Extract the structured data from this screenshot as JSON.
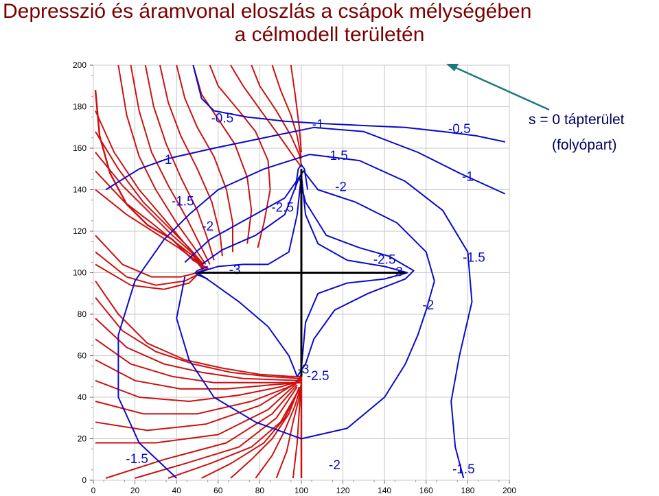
{
  "title": {
    "line1": "Depresszió és áramvonal eloszlás a csápok mélységében",
    "line2": "a célmodell területén"
  },
  "annotation": {
    "line1": "s = 0 tápterület",
    "line2": "(folyópart)"
  },
  "colors": {
    "title": "#7a0000",
    "streamlines": "#cc1111",
    "contours": "#0a0acc",
    "well": "#000000",
    "arrow": "#1a7a7a"
  },
  "chart_data": {
    "type": "contour",
    "title": "Depresszió és áramvonal eloszlás a csápok mélységében a célmodell területén",
    "xlim": [
      0,
      200
    ],
    "ylim": [
      0,
      200
    ],
    "x_ticks": [
      "0",
      "20",
      "40",
      "60",
      "80",
      "100",
      "120",
      "140",
      "160",
      "180",
      "200"
    ],
    "y_ticks": [
      "0",
      "20",
      "40",
      "60",
      "80",
      "100",
      "120",
      "140",
      "160",
      "180",
      "200"
    ],
    "grid": true,
    "well": {
      "center": [
        100,
        100
      ],
      "laterals": [
        {
          "from": [
            100,
            100
          ],
          "to": [
            50,
            100
          ]
        },
        {
          "from": [
            100,
            100
          ],
          "to": [
            150,
            100
          ]
        },
        {
          "from": [
            100,
            100
          ],
          "to": [
            100,
            150
          ]
        },
        {
          "from": [
            100,
            100
          ],
          "to": [
            100,
            50
          ]
        }
      ]
    },
    "contour_labels": [
      {
        "text": "-0.5",
        "x": 62,
        "y": 174
      },
      {
        "text": "-0.5",
        "x": 176,
        "y": 169
      },
      {
        "text": "-1",
        "x": 35,
        "y": 154
      },
      {
        "text": "-1",
        "x": 108,
        "y": 171
      },
      {
        "text": "-1",
        "x": 180,
        "y": 146
      },
      {
        "text": "-1.5",
        "x": 43,
        "y": 134
      },
      {
        "text": "-1.5",
        "x": 117,
        "y": 156
      },
      {
        "text": "-1.5",
        "x": 183,
        "y": 107
      },
      {
        "text": "-1.5",
        "x": 21,
        "y": 10
      },
      {
        "text": "-1.5",
        "x": 178,
        "y": 5
      },
      {
        "text": "-2",
        "x": 55,
        "y": 122
      },
      {
        "text": "-2",
        "x": 119,
        "y": 141
      },
      {
        "text": "-2",
        "x": 161,
        "y": 84
      },
      {
        "text": "-2",
        "x": 116,
        "y": 7
      },
      {
        "text": "-2.5",
        "x": 91,
        "y": 131
      },
      {
        "text": "-2.5",
        "x": 140,
        "y": 106
      },
      {
        "text": "-2.5",
        "x": 108,
        "y": 50
      },
      {
        "text": "-3",
        "x": 68,
        "y": 101
      },
      {
        "text": "-3",
        "x": 146,
        "y": 100
      },
      {
        "text": "-3",
        "x": 101,
        "y": 53
      }
    ]
  }
}
